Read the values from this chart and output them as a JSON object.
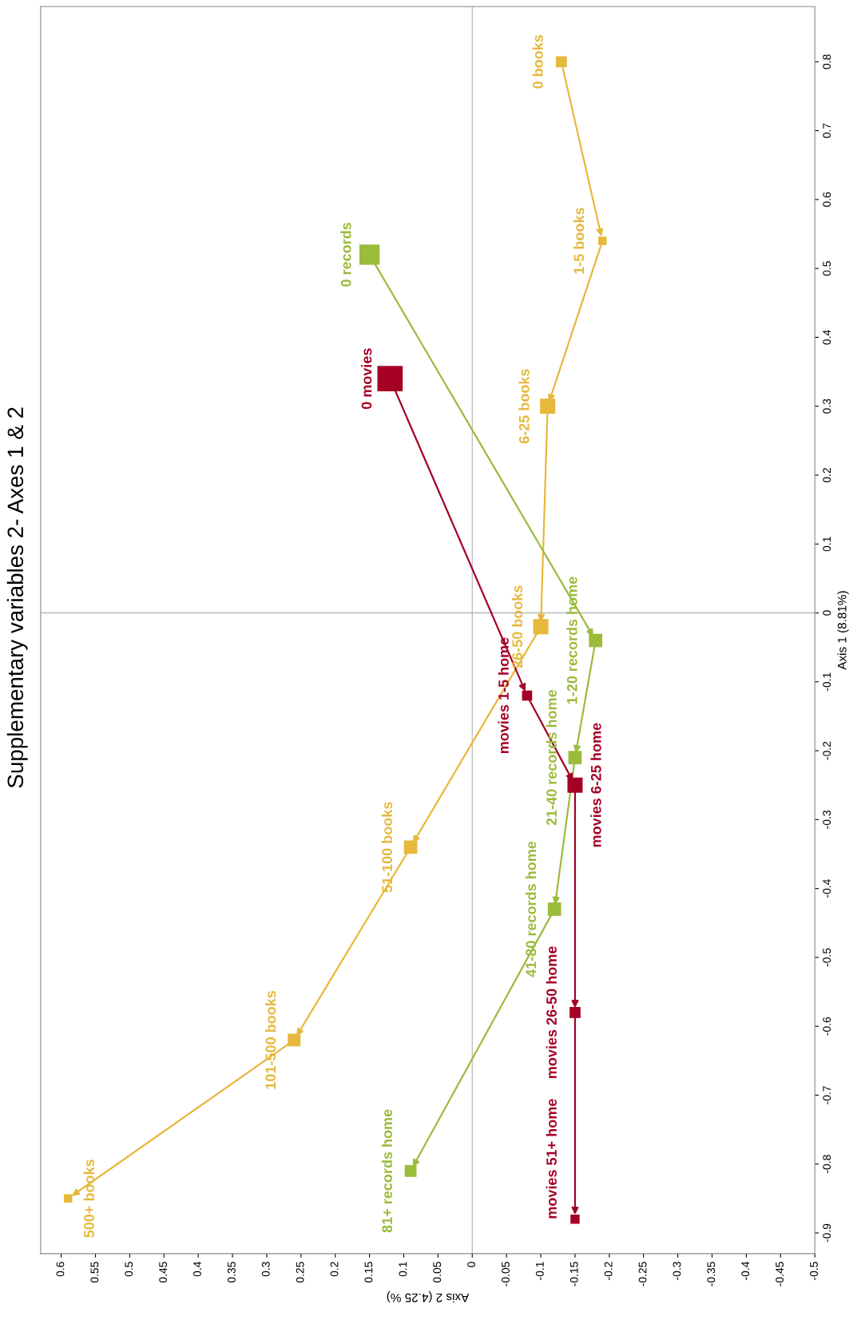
{
  "chart_data": {
    "type": "bubble",
    "title": "Supplementary variables 2- Axes 1 & 2",
    "xlabel": "Axis 2 (4.25 %)",
    "ylabel": "Axis 1 (8.81%)",
    "xlim": [
      0.63,
      -0.5
    ],
    "ylim": [
      -0.93,
      0.88
    ],
    "xticks": [
      0.6,
      0.55,
      0.5,
      0.45,
      0.4,
      0.35,
      0.3,
      0.25,
      0.2,
      0.15,
      0.1,
      0.05,
      0,
      -0.05,
      -0.1,
      -0.15,
      -0.2,
      -0.25,
      -0.3,
      -0.35,
      -0.4,
      -0.45,
      -0.5
    ],
    "yticks": [
      0.8,
      0.7,
      0.6,
      0.5,
      0.4,
      0.3,
      0.2,
      0.1,
      0,
      -0.1,
      -0.2,
      -0.3,
      -0.4,
      -0.5,
      -0.6,
      -0.7,
      -0.8,
      -0.9
    ],
    "grid": false,
    "marker": "square",
    "line_style": "solid",
    "ref_lines": [
      {
        "axis": "x",
        "value": 0,
        "color": "#c0c0c0"
      },
      {
        "axis": "y",
        "value": 0,
        "color": "#b8b8b8"
      }
    ],
    "series": [
      {
        "color": "#e6b83c",
        "x": [
          -0.13,
          -0.19,
          -0.11,
          -0.1,
          0.09,
          0.26,
          0.59
        ],
        "values": [
          0.8,
          0.54,
          0.3,
          -0.02,
          -0.34,
          -0.62,
          -0.85
        ],
        "sizes": [
          0.19,
          0.11,
          0.36,
          0.36,
          0.28,
          0.25,
          0.11
        ]
      },
      {
        "color": "#9bbb3b",
        "x": [
          0.15,
          -0.18,
          -0.15,
          -0.12,
          0.09
        ],
        "values": [
          0.52,
          -0.04,
          -0.21,
          -0.43,
          -0.81
        ],
        "sizes": [
          0.64,
          0.28,
          0.28,
          0.28,
          0.22
        ]
      },
      {
        "color": "#a50026",
        "x": [
          0.12,
          -0.08,
          -0.15,
          -0.15,
          -0.15
        ],
        "values": [
          0.34,
          -0.12,
          -0.25,
          -0.58,
          -0.88
        ],
        "sizes": [
          1,
          0.16,
          0.36,
          0.19,
          0.13
        ]
      }
    ],
    "annotations": [
      {
        "text": "0 books",
        "x": -0.13,
        "y": 0.8
      },
      {
        "text": "1-5 books",
        "x": -0.19,
        "y": 0.54
      },
      {
        "text": "6-25 books",
        "x": -0.11,
        "y": 0.3
      },
      {
        "text": "26-50 books",
        "x": -0.1,
        "y": -0.02
      },
      {
        "text": "51-100 books",
        "x": 0.09,
        "y": -0.34
      },
      {
        "text": "101-500 books",
        "x": 0.26,
        "y": -0.62
      },
      {
        "text": "500+ books",
        "x": 0.59,
        "y": -0.85
      },
      {
        "text": "0 records",
        "x": 0.15,
        "y": 0.52
      },
      {
        "text": "1-20 records home",
        "x": -0.18,
        "y": -0.04
      },
      {
        "text": "21-40 records home",
        "x": -0.15,
        "y": -0.21
      },
      {
        "text": "41-80 records home",
        "x": -0.12,
        "y": -0.43
      },
      {
        "text": "81+ records home",
        "x": 0.09,
        "y": -0.81
      },
      {
        "text": "0 movies",
        "x": 0.12,
        "y": 0.34
      },
      {
        "text": "movies 1-5 home",
        "x": -0.08,
        "y": -0.12
      },
      {
        "text": "movies 6-25 home",
        "x": -0.15,
        "y": -0.25
      },
      {
        "text": "movies 26-50 home",
        "x": -0.15,
        "y": -0.58
      },
      {
        "text": "movies 51+ home",
        "x": -0.15,
        "y": -0.88
      }
    ]
  }
}
